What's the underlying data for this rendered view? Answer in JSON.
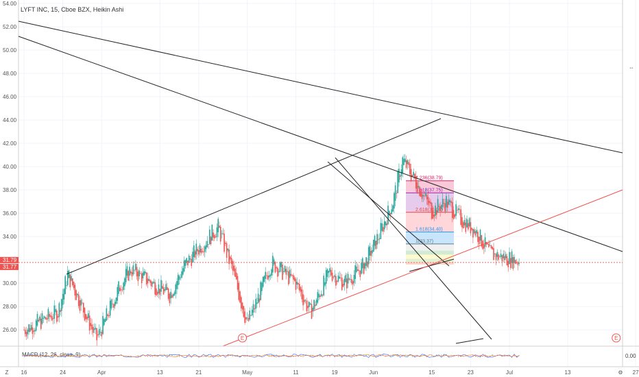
{
  "header": {
    "title": "LYFT INC, 15, Cboe BZX, Heikin Ashi"
  },
  "price_axis": {
    "labels": [
      "54.00",
      "52.00",
      "50.00",
      "48.00",
      "46.00",
      "44.00",
      "42.00",
      "40.00",
      "38.00",
      "36.00",
      "34.00",
      "32.00",
      "30.00",
      "28.00",
      "26.00"
    ],
    "values": [
      54,
      52,
      50,
      48,
      46,
      44,
      42,
      40,
      38,
      36,
      34,
      32,
      30,
      28,
      26
    ],
    "min": 24.6,
    "max": 54.3,
    "current_price": "31.79",
    "current_price_2": "31.77",
    "current_price_value": 31.78,
    "price_tag_color": "#ef5350"
  },
  "time_axis": {
    "labels": [
      "16",
      "24",
      "Apr",
      "13",
      "21",
      "May",
      "11",
      "19",
      "Jun",
      "15",
      "23",
      "Jul",
      "13",
      "27"
    ],
    "positions_days": [
      0,
      8,
      16,
      28,
      36,
      46,
      56,
      64,
      72,
      84,
      92,
      100,
      112,
      126
    ]
  },
  "fibonacci": {
    "levels": [
      {
        "label": "4.236(38.79)",
        "value": 38.79,
        "color": "#e91e63"
      },
      {
        "label": "3.618(37.75)",
        "value": 37.75,
        "color": "#9c27b0"
      },
      {
        "label": "2.618(36.08)",
        "value": 36.08,
        "color": "#f44336"
      },
      {
        "label": "1.618(34.40)",
        "value": 34.4,
        "color": "#2196f3"
      },
      {
        "label": "1(33.37)",
        "value": 33.37,
        "color": "#607d8b"
      }
    ],
    "fill_colors": [
      "#f8bbd0",
      "#e1bee7",
      "#ffcdd2",
      "#bbdefb",
      "#eeeeee"
    ]
  },
  "earnings_markers": [
    {
      "label": "E",
      "day": 45
    },
    {
      "label": "E",
      "day": 122
    }
  ],
  "macd": {
    "label": "MACD (12, 26, close, 9)",
    "value_label": "0.00"
  },
  "bottom_buttons": {
    "zoom_icon": "Z",
    "gear_icon": "⚙",
    "expand_icon": "⇔"
  },
  "trendlines_color": "#000000",
  "support_line_color": "#ef5350",
  "up_color": "#26a69a",
  "down_color": "#ef5350"
}
